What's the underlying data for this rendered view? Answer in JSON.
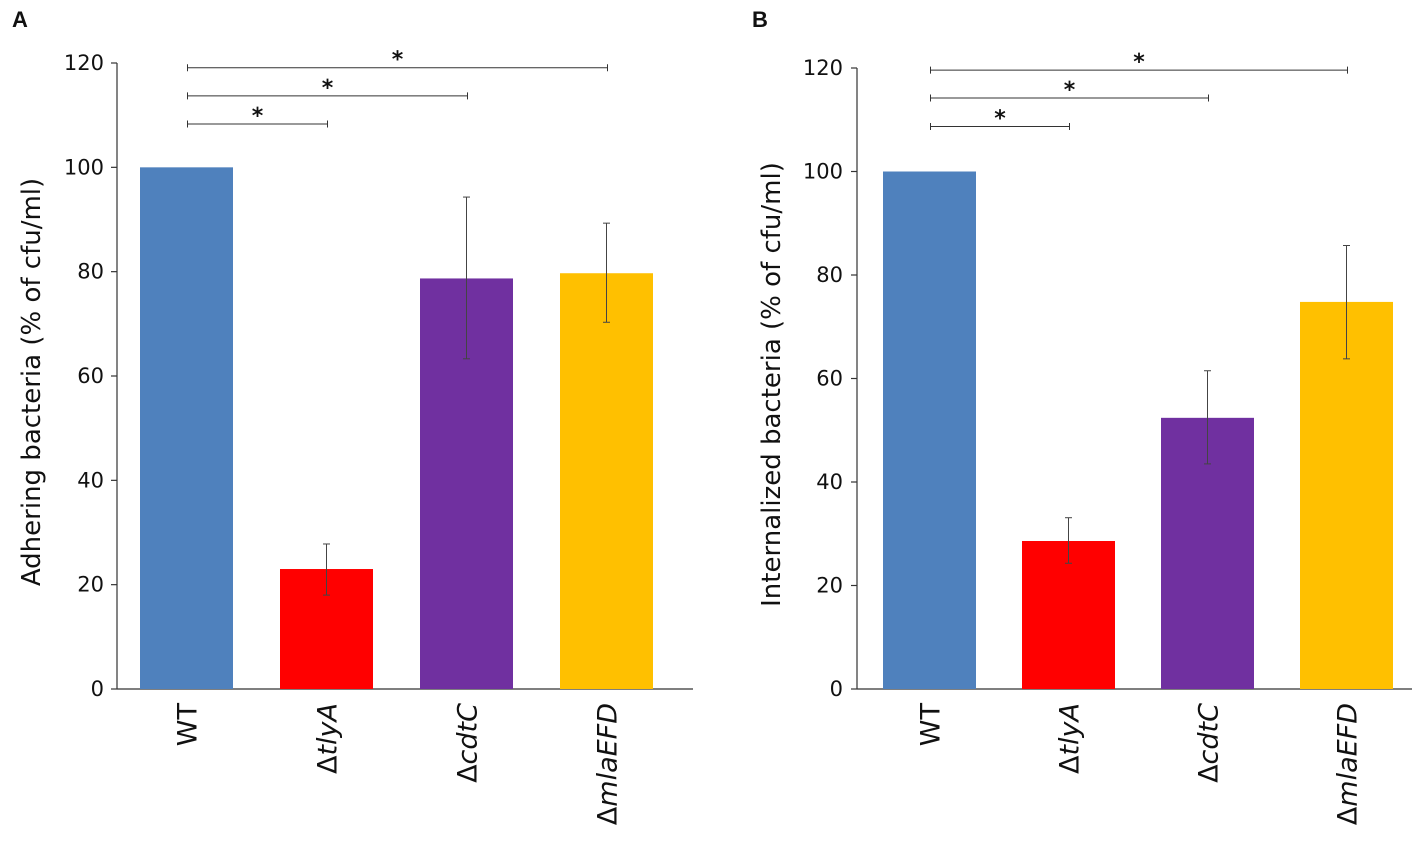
{
  "figure": {
    "panels": [
      "A",
      "B"
    ]
  },
  "chart_data": [
    {
      "type": "bar",
      "panel_label": "A",
      "ylabel": "Adhering bacteria (% of cfu/ml)",
      "ylim": [
        0,
        120
      ],
      "yticks": [
        0,
        20,
        40,
        60,
        80,
        100,
        120
      ],
      "categories": [
        {
          "prefix": "",
          "name": "WT"
        },
        {
          "prefix": "Δ",
          "name": "tlyA"
        },
        {
          "prefix": "Δ",
          "name": "cdtC"
        },
        {
          "prefix": "Δ",
          "name": "mlaEFD"
        }
      ],
      "values": [
        100,
        23,
        78.7,
        79.7
      ],
      "error_low": [
        100,
        18,
        63.3,
        70.3
      ],
      "error_high": [
        100,
        27.8,
        94.3,
        89.3
      ],
      "colors": [
        "#4F81BD",
        "#FF0000",
        "#7030A0",
        "#FFC000"
      ],
      "significance": [
        {
          "from": 0,
          "to": 1,
          "y": 108.3,
          "label": "*"
        },
        {
          "from": 0,
          "to": 2,
          "y": 113.7,
          "label": "*"
        },
        {
          "from": 0,
          "to": 3,
          "y": 119.1,
          "label": "*"
        }
      ],
      "grid": false
    },
    {
      "type": "bar",
      "panel_label": "B",
      "ylabel": "Internalized bacteria (% of cfu/ml)",
      "ylim": [
        0,
        120
      ],
      "yticks": [
        0,
        20,
        40,
        60,
        80,
        100,
        120
      ],
      "categories": [
        {
          "prefix": "",
          "name": "WT"
        },
        {
          "prefix": "Δ",
          "name": "tlyA"
        },
        {
          "prefix": "Δ",
          "name": "cdtC"
        },
        {
          "prefix": "Δ",
          "name": "mlaEFD"
        }
      ],
      "values": [
        100,
        28.6,
        52.4,
        74.8
      ],
      "error_low": [
        100,
        24.3,
        43.5,
        63.8
      ],
      "error_high": [
        100,
        33.1,
        61.5,
        85.7
      ],
      "colors": [
        "#4F81BD",
        "#FF0000",
        "#7030A0",
        "#FFC000"
      ],
      "significance": [
        {
          "from": 0,
          "to": 1,
          "y": 108.7,
          "label": "*"
        },
        {
          "from": 0,
          "to": 2,
          "y": 114.2,
          "label": "*"
        },
        {
          "from": 0,
          "to": 3,
          "y": 119.6,
          "label": "*"
        }
      ],
      "grid": false
    }
  ]
}
